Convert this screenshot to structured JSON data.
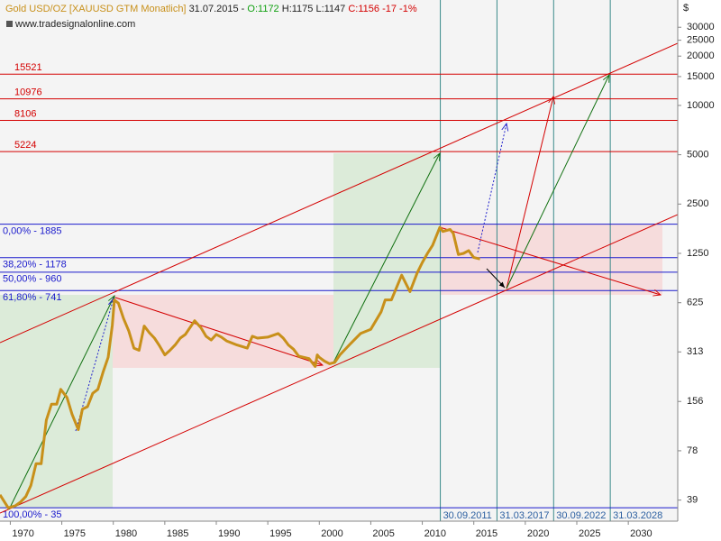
{
  "chart_data": {
    "type": "line",
    "header": {
      "instrument": "Gold USD/OZ [XAUUSD GTM  Monatlich]",
      "date": "31.07.2015 -",
      "open": "O:1172",
      "high": "H:1175",
      "low": "L:1147",
      "close": "C:1156",
      "change": "-17 -1%"
    },
    "source": "www.tradesignalonline.com",
    "y_unit": "$",
    "log_y": true,
    "xlim": [
      1969,
      2034.8
    ],
    "ylim": [
      29,
      44000
    ],
    "xticks": [
      1970,
      1975,
      1980,
      1985,
      1990,
      1995,
      2000,
      2005,
      2010,
      2015,
      2020,
      2025,
      2030
    ],
    "yticks": [
      39,
      78,
      156,
      313,
      625,
      1250,
      2500,
      5000,
      10000,
      15000,
      20000,
      25000,
      30000
    ],
    "x": [
      1969.0,
      1969.8,
      1970.5,
      1971.0,
      1971.5,
      1972.0,
      1972.5,
      1973.0,
      1973.5,
      1974.0,
      1974.5,
      1974.9,
      1975.5,
      1976.0,
      1976.6,
      1977.0,
      1977.5,
      1978.0,
      1978.5,
      1979.0,
      1979.5,
      1979.9,
      1980.1,
      1980.5,
      1981.0,
      1981.5,
      1982.0,
      1982.5,
      1983.0,
      1983.5,
      1984.0,
      1984.5,
      1985.0,
      1985.5,
      1986.0,
      1986.5,
      1987.0,
      1987.9,
      1988.5,
      1989.0,
      1989.5,
      1990.0,
      1990.5,
      1991.0,
      1992.0,
      1993.0,
      1993.5,
      1994.0,
      1995.0,
      1996.0,
      1996.5,
      1997.0,
      1997.5,
      1998.0,
      1999.0,
      1999.6,
      1999.8,
      2000.0,
      2000.5,
      2001.0,
      2001.5,
      2002.0,
      2003.0,
      2004.0,
      2005.0,
      2006.0,
      2006.4,
      2007.0,
      2008.0,
      2008.8,
      2009.5,
      2010.0,
      2010.5,
      2011.0,
      2011.7,
      2012.0,
      2012.7,
      2013.0,
      2013.5,
      2014.0,
      2014.5,
      2015.0,
      2015.6
    ],
    "series": [
      {
        "name": "Gold USD/OZ",
        "color": "#c8901a",
        "values": [
          42,
          35,
          36,
          38,
          41,
          48,
          65,
          65,
          120,
          150,
          150,
          185,
          165,
          130,
          105,
          140,
          145,
          175,
          185,
          235,
          290,
          455,
          650,
          620,
          500,
          420,
          330,
          320,
          450,
          410,
          380,
          340,
          300,
          320,
          345,
          380,
          400,
          485,
          440,
          390,
          370,
          400,
          385,
          365,
          345,
          330,
          390,
          380,
          385,
          405,
          380,
          345,
          325,
          295,
          285,
          255,
          300,
          290,
          275,
          265,
          270,
          300,
          350,
          405,
          430,
          550,
          650,
          650,
          920,
          730,
          950,
          1100,
          1250,
          1400,
          1800,
          1700,
          1750,
          1660,
          1230,
          1250,
          1300,
          1180,
          1156
        ]
      }
    ],
    "price_levels": [
      15521,
      10976,
      8106,
      5224
    ],
    "price_level_color": "#d40000",
    "fib_levels": [
      {
        "value": 1885,
        "label": "0,00% - 1885"
      },
      {
        "value": 1178,
        "label": "38,20% - 1178"
      },
      {
        "value": 960,
        "label": "50,00% - 960"
      },
      {
        "value": 741,
        "label": "61,80% - 741"
      },
      {
        "value": 35,
        "label": "100,00% - 35"
      }
    ],
    "fib_color": "#1a1acc",
    "date_lines": [
      {
        "value": 2011.75,
        "label": "30.09.2011"
      },
      {
        "value": 2017.25,
        "label": "31.03.2017"
      },
      {
        "value": 2022.75,
        "label": "30.09.2022"
      },
      {
        "value": 2028.25,
        "label": "31.03.2028"
      }
    ],
    "date_line_color": "#3a8a8a"
  }
}
